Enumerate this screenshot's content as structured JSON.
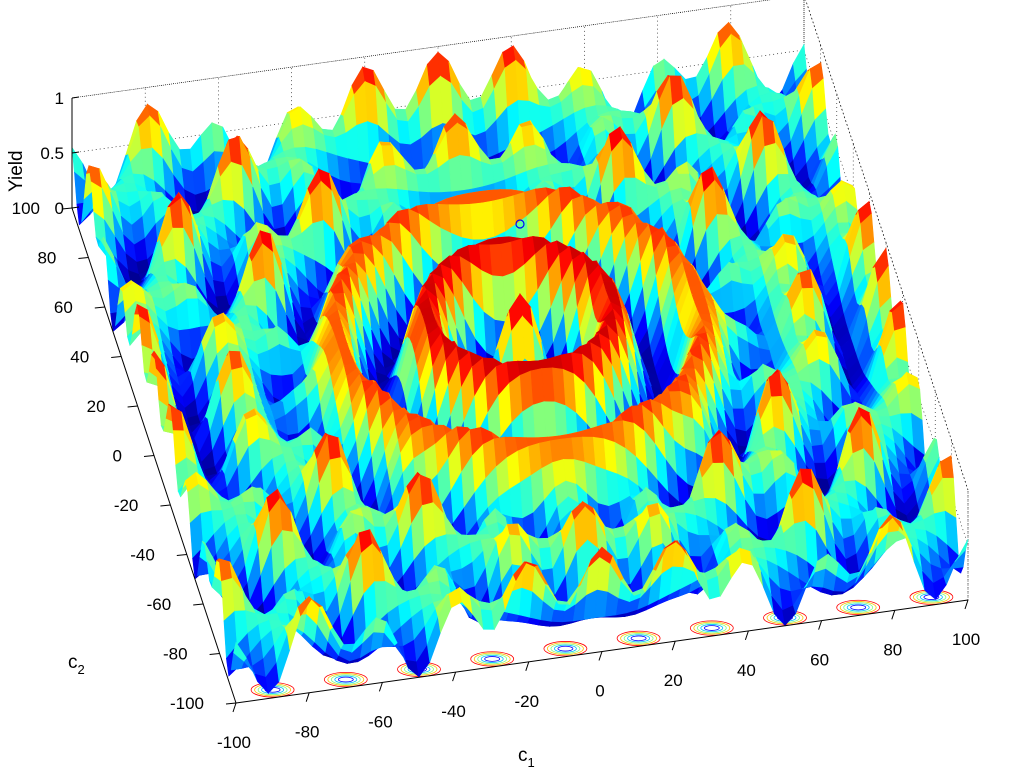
{
  "chart_data": {
    "type": "surface3d",
    "title": "",
    "xlabel": "c",
    "xlabel_subscript": "1",
    "ylabel": "c",
    "ylabel_subscript": "2",
    "zlabel": "Yield",
    "xlim": [
      -100,
      100
    ],
    "ylim": [
      -100,
      100
    ],
    "zlim": [
      0,
      1
    ],
    "x_ticks": [
      "-100",
      "-80",
      "-60",
      "-40",
      "-20",
      "0",
      "20",
      "40",
      "60",
      "80",
      "100"
    ],
    "y_ticks": [
      "-100",
      "-80",
      "-60",
      "-40",
      "-20",
      "0",
      "20",
      "40",
      "60",
      "80",
      "100"
    ],
    "z_ticks": [
      "0",
      "0.5",
      "1"
    ],
    "colormap": [
      "#00007f",
      "#0000ff",
      "#007fff",
      "#00ffff",
      "#7fff7f",
      "#ffff00",
      "#ff7f00",
      "#ff0000",
      "#7f0000"
    ],
    "grid": true,
    "contours_on_floor": true,
    "marker": {
      "x": 0,
      "y": 0,
      "z": 1.0,
      "shape": "circle",
      "color": "#0000ff"
    }
  }
}
